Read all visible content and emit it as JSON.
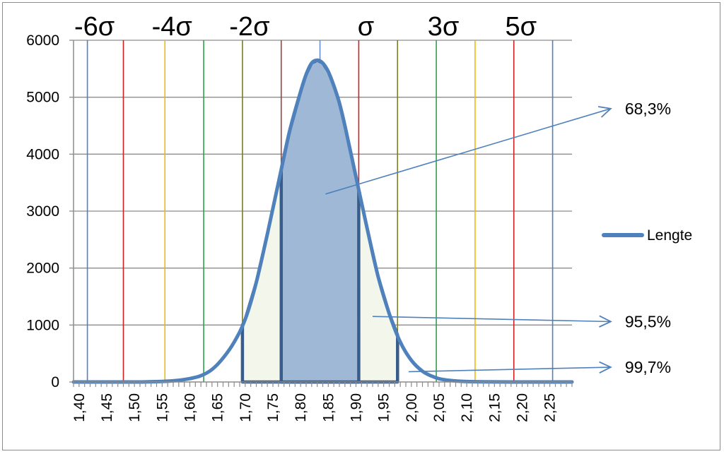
{
  "chart_data": {
    "type": "line",
    "title": "",
    "xlabel": "",
    "ylabel": "",
    "ylim": [
      0,
      6000
    ],
    "xlim": [
      1.39,
      2.29
    ],
    "grid": true,
    "legend_position": "right",
    "y_ticks": [
      "0",
      "1000",
      "2000",
      "3000",
      "4000",
      "5000",
      "6000"
    ],
    "y_tick_values": [
      0,
      1000,
      2000,
      3000,
      4000,
      5000,
      6000
    ],
    "x_ticks": [
      "1,40",
      "1,45",
      "1,50",
      "1,55",
      "1,60",
      "1,65",
      "1,70",
      "1,75",
      "1,80",
      "1,85",
      "1,90",
      "1,95",
      "2,00",
      "2,05",
      "2,10",
      "2,15",
      "2,20",
      "2,25"
    ],
    "x_tick_values": [
      1.4,
      1.45,
      1.5,
      1.55,
      1.6,
      1.65,
      1.7,
      1.75,
      1.8,
      1.85,
      1.9,
      1.95,
      2.0,
      2.05,
      2.1,
      2.15,
      2.2,
      2.25
    ],
    "series": [
      {
        "name": "Lengte",
        "color": "#4f81bd",
        "x": [
          1.39,
          1.5,
          1.55,
          1.58,
          1.6,
          1.62,
          1.64,
          1.66,
          1.68,
          1.7,
          1.72,
          1.74,
          1.76,
          1.78,
          1.8,
          1.81,
          1.82,
          1.83,
          1.84,
          1.85,
          1.86,
          1.87,
          1.88,
          1.9,
          1.92,
          1.94,
          1.96,
          1.98,
          2.0,
          2.02,
          2.04,
          2.06,
          2.1,
          2.2,
          2.29
        ],
        "y": [
          0,
          0,
          10,
          30,
          60,
          110,
          220,
          420,
          700,
          1100,
          1750,
          2600,
          3500,
          4400,
          5100,
          5400,
          5600,
          5650,
          5600,
          5450,
          5200,
          4900,
          4500,
          3600,
          2700,
          1850,
          1200,
          700,
          380,
          190,
          90,
          40,
          8,
          0,
          0
        ]
      }
    ],
    "sigma_lines": [
      {
        "x": 1.415,
        "color": "#4f81bd"
      },
      {
        "x": 1.48,
        "color": "#d12020"
      },
      {
        "x": 1.555,
        "color": "#f5b800"
      },
      {
        "x": 1.625,
        "color": "#2ea14b"
      },
      {
        "x": 1.695,
        "color": "#7a7a2a"
      },
      {
        "x": 1.765,
        "color": "#a04040"
      },
      {
        "x": 1.835,
        "color": "#6a8fd0"
      },
      {
        "x": 1.905,
        "color": "#d12020"
      },
      {
        "x": 1.975,
        "color": "#7a7a2a"
      },
      {
        "x": 2.045,
        "color": "#2ea14b"
      },
      {
        "x": 2.115,
        "color": "#f5b800"
      },
      {
        "x": 2.185,
        "color": "#d12020"
      },
      {
        "x": 2.255,
        "color": "#4f81bd"
      }
    ],
    "sigma_labels": [
      {
        "text": "-6σ",
        "x": 1.415
      },
      {
        "text": "-4σ",
        "x": 1.555
      },
      {
        "text": "-2σ",
        "x": 1.695
      },
      {
        "text": "σ",
        "x": 1.905
      },
      {
        "text": "3σ",
        "x": 2.045
      },
      {
        "text": "5σ",
        "x": 2.185
      }
    ],
    "shaded_regions": [
      {
        "from": 1.695,
        "to": 1.975,
        "color": "#f3f6ea",
        "outline": "#385d8a"
      },
      {
        "from": 1.765,
        "to": 1.905,
        "color": "#9fb8d6",
        "outline": "#385d8a"
      }
    ],
    "annotations": [
      {
        "text": "68,3%",
        "from": [
          1.845,
          3300
        ],
        "to": [
          2.36,
          4800
        ]
      },
      {
        "text": "95,5%",
        "from": [
          1.93,
          1150
        ],
        "to": [
          2.36,
          1060
        ]
      },
      {
        "text": "99,7%",
        "from": [
          1.995,
          180
        ],
        "to": [
          2.36,
          260
        ]
      }
    ],
    "legend": [
      {
        "name": "Lengte",
        "color": "#4f81bd"
      }
    ]
  }
}
